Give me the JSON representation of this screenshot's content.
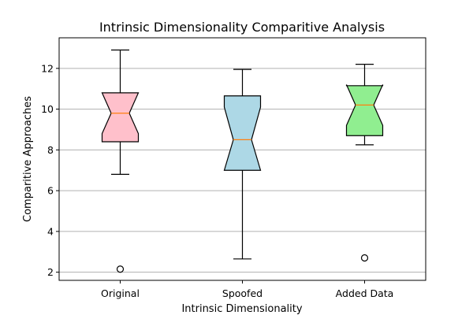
{
  "chart_data": {
    "type": "box",
    "title": "Intrinsic Dimensionality Comparitive Analysis",
    "xlabel": "Intrinsic Dimensionality",
    "ylabel": "Comparitive Approaches",
    "ylim": [
      1.6,
      13.5
    ],
    "yticks": [
      2,
      4,
      6,
      8,
      10,
      12
    ],
    "grid": "horizontal",
    "notched": true,
    "categories": [
      "Original",
      "Spoofed",
      "Added Data"
    ],
    "boxes": [
      {
        "category": "Original",
        "color": "#ffc0cb",
        "whisker_low": 6.8,
        "q1": 8.4,
        "median": 9.8,
        "q3": 10.8,
        "whisker_high": 12.9,
        "notch_low": 8.8,
        "notch_high": 10.8,
        "outliers": [
          2.15
        ]
      },
      {
        "category": "Spoofed",
        "color": "#add8e6",
        "whisker_low": 2.65,
        "q1": 7.0,
        "median": 8.5,
        "q3": 10.65,
        "whisker_high": 11.95,
        "notch_low": 7.0,
        "notch_high": 10.1,
        "outliers": []
      },
      {
        "category": "Added Data",
        "color": "#90ee90",
        "whisker_low": 8.25,
        "q1": 8.7,
        "median": 10.2,
        "q3": 11.15,
        "whisker_high": 12.2,
        "notch_low": 9.2,
        "notch_high": 11.2,
        "outliers": [
          2.7
        ]
      }
    ],
    "median_color": "#ff7f0e",
    "grid_color": "#b0b0b0"
  }
}
